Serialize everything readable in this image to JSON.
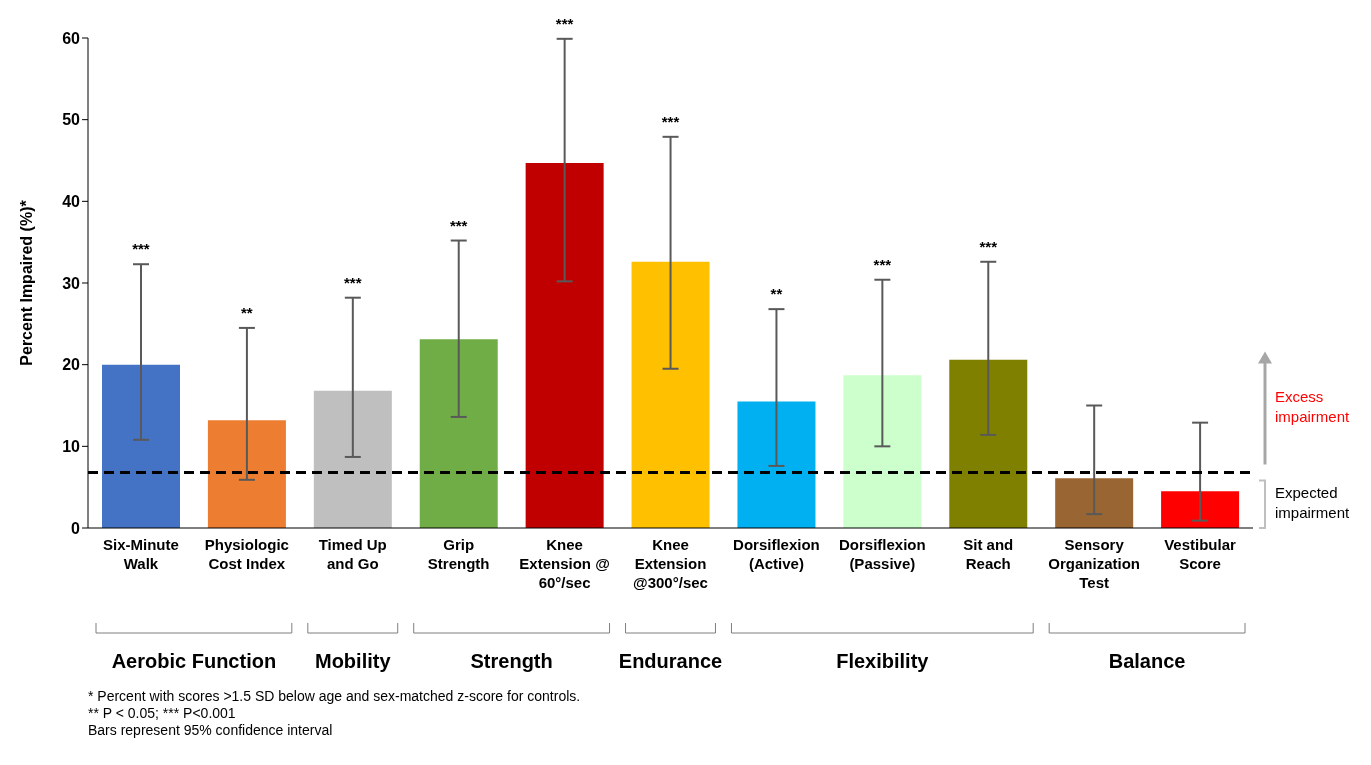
{
  "chart_data": {
    "type": "bar",
    "ylabel": "Percent Impaired (%)*",
    "categories": [
      "Six-Minute Walk",
      "Physiologic Cost Index",
      "Timed Up and Go",
      "Grip Strength",
      "Knee Extension @ 60°/sec",
      "Knee Extension @300°/sec",
      "Dorsiflexion (Active)",
      "Dorsiflexion (Passive)",
      "Sit and Reach",
      "Sensory Organization Test",
      "Vestibular Score"
    ],
    "values": [
      20,
      13.2,
      16.8,
      23.1,
      44.7,
      32.6,
      15.5,
      18.7,
      20.6,
      6.1,
      4.5
    ],
    "colors": [
      "#4472c4",
      "#ed7d31",
      "#bfbfbf",
      "#70ad47",
      "#c00000",
      "#ffc000",
      "#00b0f0",
      "#ccffcc",
      "#808000",
      "#996633",
      "#ff0000"
    ],
    "errors": [
      [
        10.8,
        32.3
      ],
      [
        5.9,
        24.5
      ],
      [
        8.7,
        28.2
      ],
      [
        13.6,
        35.2
      ],
      [
        30.2,
        59.9
      ],
      [
        19.5,
        47.9
      ],
      [
        7.6,
        26.8
      ],
      [
        10.0,
        30.4
      ],
      [
        11.4,
        32.6
      ],
      [
        1.7,
        15.0
      ],
      [
        0.9,
        12.9
      ]
    ],
    "ylim": [
      0,
      60
    ],
    "yticks": [
      0,
      10,
      20,
      30,
      40,
      50,
      60
    ],
    "ref_lines": [
      {
        "axis": "y",
        "value": 6.8,
        "color": "#000000",
        "line_style": "dashed"
      }
    ],
    "annotations": [
      {
        "text": "***",
        "x": "Six-Minute Walk",
        "y": 32.3
      },
      {
        "text": "**",
        "x": "Physiologic Cost Index",
        "y": 24.5
      },
      {
        "text": "***",
        "x": "Timed Up and Go",
        "y": 28.2
      },
      {
        "text": "***",
        "x": "Grip Strength",
        "y": 35.2
      },
      {
        "text": "***",
        "x": "Knee Extension @ 60°/sec",
        "y": 59.9
      },
      {
        "text": "***",
        "x": "Knee Extension @300°/sec",
        "y": 47.9
      },
      {
        "text": "**",
        "x": "Dorsiflexion (Active)",
        "y": 26.8
      },
      {
        "text": "***",
        "x": "Dorsiflexion (Passive)",
        "y": 30.4
      },
      {
        "text": "***",
        "x": "Sit and Reach",
        "y": 32.6
      },
      "Aerobic Function",
      "Mobility",
      "Strength",
      "Endurance",
      "Flexibility",
      "Balance",
      "Excess impairment",
      "Expected impairment",
      "* Percent with scores >1.5 SD below age and sex-matched z-score for controls.",
      "** P < 0.05; *** P<0.001",
      "Bars represent 95% confidence interval"
    ]
  }
}
